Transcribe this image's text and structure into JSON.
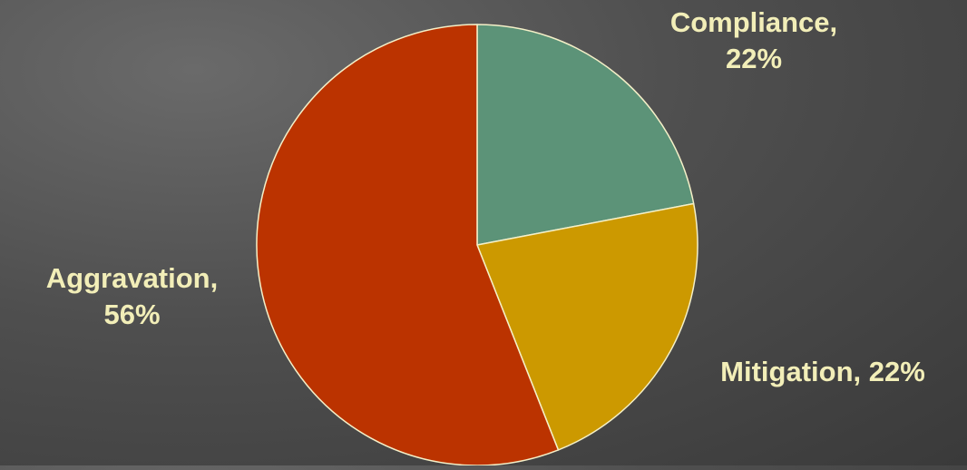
{
  "chart_data": {
    "type": "pie",
    "slices": [
      {
        "category": "Compliance",
        "value": 22,
        "label_line1": "Compliance,",
        "label_line2": "22%",
        "color": "#5c9378"
      },
      {
        "category": "Mitigation",
        "value": 22,
        "label_line1": "Mitigation, 22%",
        "label_line2": "",
        "color": "#cc9900"
      },
      {
        "category": "Aggravation",
        "value": 56,
        "label_line1": "Aggravation,",
        "label_line2": "56%",
        "color": "#bb3300"
      }
    ],
    "slice_border_color": "#f5f0c8",
    "label_color": "#f2eeb8",
    "legend": "none"
  }
}
